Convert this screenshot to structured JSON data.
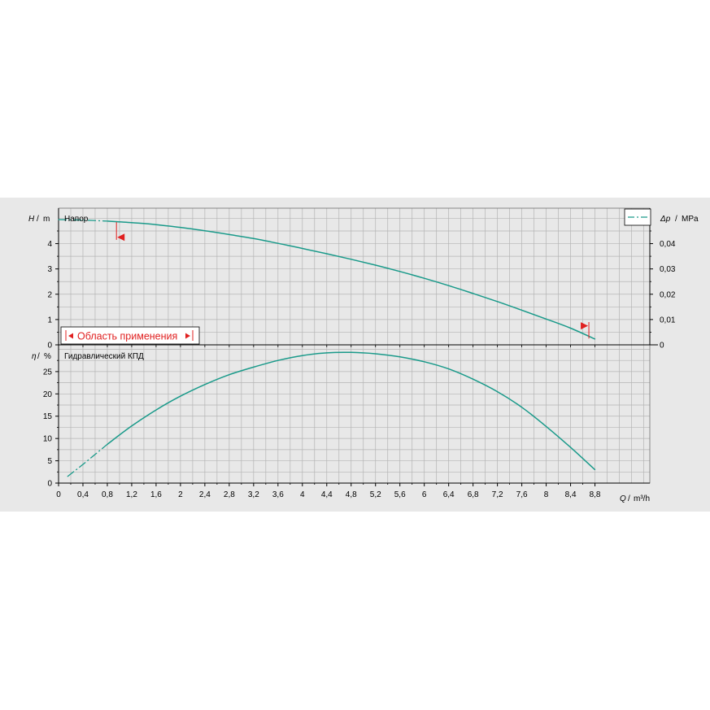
{
  "colors": {
    "curve": "#1a9a8a",
    "marker": "#e02020",
    "grid": "#b4b4b4",
    "plot_bg": "#e8e8e8",
    "axis": "#000000"
  },
  "chart_data": [
    {
      "type": "line",
      "panel": "top",
      "ylabel_var": "H",
      "ylabel_unit": "m",
      "y2label_var": "Δp",
      "y2label_unit": "MPa",
      "series_label": "Напор",
      "xlim": [
        0,
        9.7
      ],
      "ylim": [
        0,
        5.4
      ],
      "y2lim": [
        0,
        0.054
      ],
      "yticks": [
        "0",
        "1",
        "2",
        "3",
        "4"
      ],
      "y2ticks": [
        "0",
        "0,01",
        "0,02",
        "0,03",
        "0,04"
      ],
      "grid": true,
      "legend": "top-right",
      "x": [
        0,
        0.4,
        0.8,
        1.2,
        1.6,
        2.0,
        2.4,
        2.8,
        3.2,
        3.6,
        4.0,
        4.4,
        4.8,
        5.2,
        5.6,
        6.0,
        6.4,
        6.8,
        7.2,
        7.6,
        8.0,
        8.4,
        8.8
      ],
      "values": [
        4.95,
        4.93,
        4.89,
        4.83,
        4.75,
        4.64,
        4.51,
        4.36,
        4.2,
        4.01,
        3.81,
        3.6,
        3.38,
        3.15,
        2.9,
        2.63,
        2.34,
        2.03,
        1.71,
        1.37,
        1.02,
        0.66,
        0.23
      ],
      "range_label": "Область применения",
      "range_markers": [
        {
          "x": 0.95,
          "y": 4.25,
          "direction": "left"
        },
        {
          "x": 8.7,
          "y": 0.75,
          "direction": "right"
        }
      ]
    },
    {
      "type": "line",
      "panel": "bottom",
      "ylabel_var": "η",
      "ylabel_unit": "%",
      "series_label": "Гидравлический КПД",
      "xlabel_var": "Q",
      "xlabel_unit": "m³/h",
      "xlim": [
        0,
        9.7
      ],
      "ylim": [
        0,
        31
      ],
      "xticks": [
        "0",
        "0,4",
        "0,8",
        "1,2",
        "1,6",
        "2",
        "2,4",
        "2,8",
        "3,2",
        "3,6",
        "4",
        "4,4",
        "4,8",
        "5,2",
        "5,6",
        "6",
        "6,4",
        "6,8",
        "7,2",
        "7,6",
        "8",
        "8,4",
        "8,8"
      ],
      "yticks": [
        "0",
        "5",
        "10",
        "15",
        "20",
        "25"
      ],
      "grid": true,
      "x": [
        0.15,
        0.4,
        0.8,
        1.2,
        1.6,
        2.0,
        2.4,
        2.8,
        3.2,
        3.6,
        4.0,
        4.4,
        4.8,
        5.2,
        5.6,
        6.0,
        6.4,
        6.8,
        7.2,
        7.6,
        8.0,
        8.4,
        8.8
      ],
      "values": [
        1.5,
        4.2,
        8.7,
        12.8,
        16.4,
        19.5,
        22.1,
        24.3,
        26.0,
        27.5,
        28.6,
        29.2,
        29.3,
        29.0,
        28.3,
        27.2,
        25.6,
        23.3,
        20.5,
        17.0,
        12.7,
        8.0,
        3.0
      ]
    }
  ]
}
